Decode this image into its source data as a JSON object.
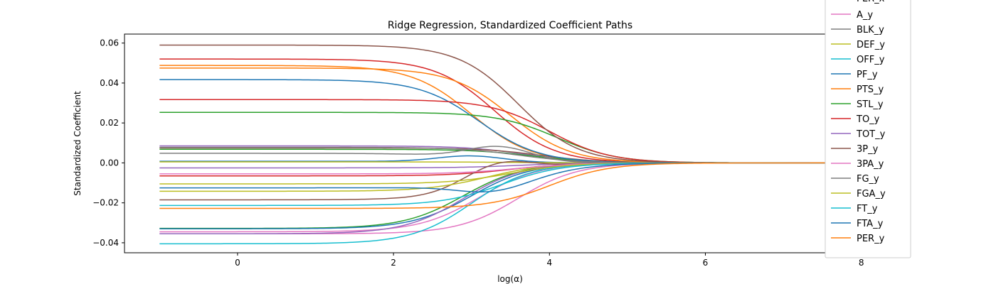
{
  "chart_data": {
    "type": "line",
    "title": "Ridge Regression, Standardized Coefficient Paths",
    "xlabel": "log(α)",
    "ylabel": "Standardized Coefficient",
    "xlim": [
      -1.45,
      8.45
    ],
    "ylim": [
      -0.045,
      0.0645
    ],
    "xticks": [
      0,
      2,
      4,
      6,
      8
    ],
    "xtick_labels": [
      "0",
      "2",
      "4",
      "6",
      "8"
    ],
    "yticks": [
      -0.04,
      -0.02,
      0.0,
      0.02,
      0.04,
      0.06
    ],
    "ytick_labels": [
      "−0.04",
      "−0.02",
      "0.00",
      "0.02",
      "0.04",
      "0.06"
    ],
    "grid": false,
    "legend_position": "upper-right-outside",
    "legend_partial_label": "PER_x",
    "x_range": [
      -1,
      8
    ],
    "series": [
      {
        "name": "A_y",
        "color": "#e377c2",
        "start": -0.0355,
        "mid": 3.6
      },
      {
        "name": "BLK_y",
        "color": "#7f7f7f",
        "start": 0.0048,
        "mid": 3.0,
        "bump": 0.0075,
        "bump_at": 3.4
      },
      {
        "name": "DEF_y",
        "color": "#bcbd22",
        "start": -0.0142,
        "mid": 3.2
      },
      {
        "name": "OFF_y",
        "color": "#17becf",
        "start": -0.0405,
        "mid": 3.0
      },
      {
        "name": "PF_y",
        "color": "#1f77b4",
        "start": 0.0417,
        "mid": 3.1
      },
      {
        "name": "PTS_y",
        "color": "#ff7f0e",
        "start": 0.0475,
        "mid": 3.5
      },
      {
        "name": "STL_y",
        "color": "#2ca02c",
        "start": 0.0253,
        "mid": 4.1
      },
      {
        "name": "TO_y",
        "color": "#d62728",
        "start": 0.0317,
        "mid": 4.0
      },
      {
        "name": "TOT_y",
        "color": "#9467bd",
        "start": -0.0355,
        "mid": 2.9
      },
      {
        "name": "3P_y",
        "color": "#8c564b",
        "start": 0.059,
        "mid": 3.6
      },
      {
        "name": "3PA_y",
        "color": "#e377c2",
        "start": -0.0055,
        "mid": 3.6
      },
      {
        "name": "FG_y",
        "color": "#7f7f7f",
        "start": 0.0078,
        "mid": 3.6
      },
      {
        "name": "FGA_y",
        "color": "#bcbd22",
        "start": -0.0105,
        "mid": 3.5
      },
      {
        "name": "FT_y",
        "color": "#17becf",
        "start": -0.0213,
        "mid": 3.4
      },
      {
        "name": "FTA_y",
        "color": "#1f77b4",
        "start": -0.0125,
        "mid": 3.9,
        "bump": -0.004,
        "bump_at": 3.3
      },
      {
        "name": "PER_y",
        "color": "#ff7f0e",
        "start": -0.0228,
        "mid": 4.0
      }
    ],
    "unlabeled_series": [
      {
        "color": "#d62728",
        "start": 0.052,
        "mid": 3.3
      },
      {
        "color": "#ff7f0e",
        "start": 0.0488,
        "mid": 3.0
      },
      {
        "color": "#9467bd",
        "start": 0.0085,
        "mid": 3.7
      },
      {
        "color": "#8c564b",
        "start": 0.0075,
        "mid": 3.9
      },
      {
        "color": "#2ca02c",
        "start": 0.0068,
        "mid": 3.8
      },
      {
        "color": "#1f77b4",
        "start": 0.0008,
        "mid": 3.5,
        "bump": 0.003,
        "bump_at": 3.0
      },
      {
        "color": "#bcbd22",
        "start": 0.0005,
        "mid": 3.5
      },
      {
        "color": "#9467bd",
        "start": -0.0025,
        "mid": 3.6
      },
      {
        "color": "#d62728",
        "start": -0.0065,
        "mid": 3.5
      },
      {
        "color": "#8c564b",
        "start": -0.0185,
        "mid": 3.2,
        "bump": 0.008,
        "bump_at": 3.3
      },
      {
        "color": "#2ca02c",
        "start": -0.0328,
        "mid": 2.9
      },
      {
        "color": "#1f77b4",
        "start": -0.033,
        "mid": 3.0
      },
      {
        "color": "#e377c2",
        "start": -0.0345,
        "mid": 3.1
      }
    ]
  }
}
